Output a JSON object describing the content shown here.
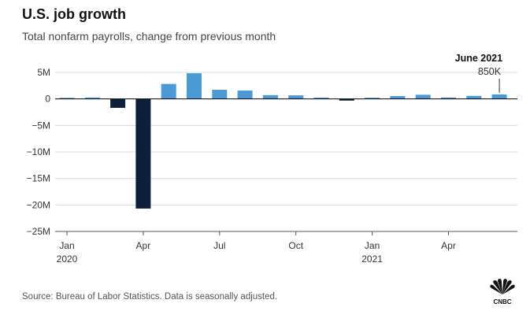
{
  "header": {
    "title": "U.S. job growth",
    "subtitle": "Total nonfarm payrolls, change from previous month"
  },
  "footer": {
    "source": "Source: Bureau of Labor Statistics. Data is seasonally adjusted.",
    "logo_text": "CNBC"
  },
  "colors": {
    "positive": "#4a9ad8",
    "negative": "#0d1f3a",
    "grid": "#d9d9d9",
    "axis": "#000000"
  },
  "chart_data": {
    "type": "bar",
    "title": "U.S. job growth",
    "subtitle": "Total nonfarm payrolls, change from previous month",
    "xlabel": "",
    "ylabel": "",
    "ylim": [
      -25,
      5
    ],
    "y_ticks": [
      {
        "value": 5,
        "label": "5M"
      },
      {
        "value": 0,
        "label": "0"
      },
      {
        "value": -5,
        "label": "−5M"
      },
      {
        "value": -10,
        "label": "−10M"
      },
      {
        "value": -15,
        "label": "−15M"
      },
      {
        "value": -20,
        "label": "−20M"
      },
      {
        "value": -25,
        "label": "−25M"
      }
    ],
    "categories": [
      "2020-01",
      "2020-02",
      "2020-03",
      "2020-04",
      "2020-05",
      "2020-06",
      "2020-07",
      "2020-08",
      "2020-09",
      "2020-10",
      "2020-11",
      "2020-12",
      "2021-01",
      "2021-02",
      "2021-03",
      "2021-04",
      "2021-05",
      "2021-06"
    ],
    "values": [
      0.21,
      0.27,
      -1.68,
      -20.68,
      2.83,
      4.85,
      1.73,
      1.58,
      0.72,
      0.68,
      0.26,
      -0.31,
      0.23,
      0.54,
      0.79,
      0.27,
      0.58,
      0.85
    ],
    "x_ticks": [
      {
        "index": 0,
        "label": "Jan",
        "year": "2020"
      },
      {
        "index": 3,
        "label": "Apr",
        "year": ""
      },
      {
        "index": 6,
        "label": "Jul",
        "year": ""
      },
      {
        "index": 9,
        "label": "Oct",
        "year": ""
      },
      {
        "index": 12,
        "label": "Jan",
        "year": "2021"
      },
      {
        "index": 15,
        "label": "Apr",
        "year": ""
      }
    ],
    "highlight_index": 3,
    "annotation": {
      "index": 17,
      "label": "June 2021",
      "value": "850K"
    },
    "grid": true
  }
}
